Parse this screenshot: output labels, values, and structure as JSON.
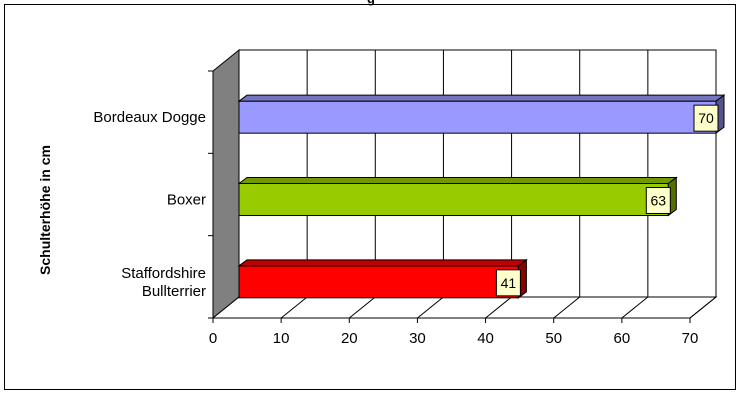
{
  "chart_data": {
    "type": "bar",
    "orientation": "horizontal",
    "three_d": true,
    "title": "g",
    "xlabel": "",
    "ylabel": "Schulterhöhe in cm",
    "categories": [
      [
        "Bordeaux Dogge"
      ],
      [
        "Boxer"
      ],
      [
        "Staffordshire",
        "Bullterrier"
      ]
    ],
    "values": [
      70,
      63,
      41
    ],
    "bar_colors": [
      "#9999ff",
      "#99cc00",
      "#ff0000"
    ],
    "xlim": [
      0,
      70
    ],
    "x_ticks": [
      0,
      10,
      20,
      30,
      40,
      50,
      60,
      70
    ],
    "grid": true,
    "legend": "none"
  }
}
